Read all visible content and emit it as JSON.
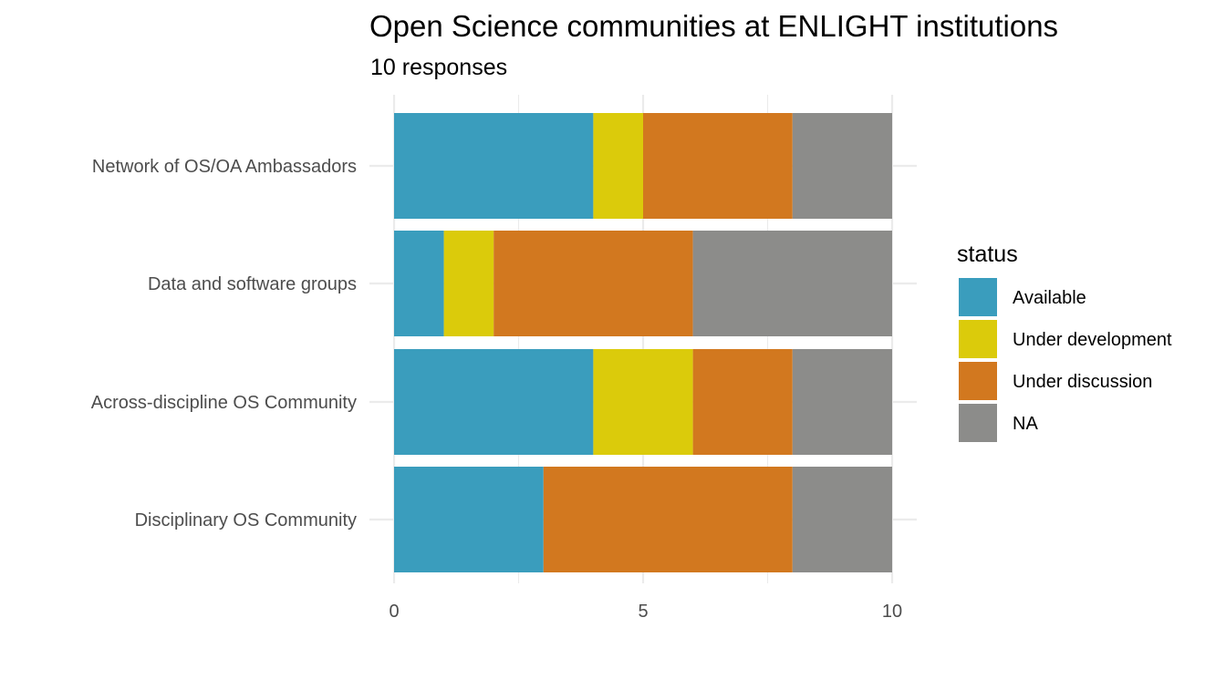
{
  "chart_data": {
    "type": "bar",
    "orientation": "horizontal",
    "stacked": true,
    "title": "Open Science communities at ENLIGHT institutions",
    "subtitle": "10 responses",
    "xlabel": "",
    "ylabel": "",
    "xlim": [
      0,
      10
    ],
    "xticks": [
      "0",
      "5",
      "10"
    ],
    "xtick_values": [
      0,
      5,
      10
    ],
    "grid": true,
    "legend": {
      "title": "status",
      "position": "right"
    },
    "categories": [
      "Network of OS/OA Ambassadors",
      "Data and software groups",
      "Across-discipline OS Community",
      "Disciplinary OS Community"
    ],
    "series": [
      {
        "name": "Available",
        "color": "#3a9dbd",
        "values": [
          4,
          1,
          4,
          3
        ]
      },
      {
        "name": "Under development",
        "color": "#dbcb0b",
        "values": [
          1,
          1,
          2,
          0
        ]
      },
      {
        "name": "Under discussion",
        "color": "#d2781f",
        "values": [
          3,
          4,
          2,
          5
        ]
      },
      {
        "name": "NA",
        "color": "#8c8c8a",
        "values": [
          2,
          4,
          2,
          2
        ]
      }
    ]
  }
}
